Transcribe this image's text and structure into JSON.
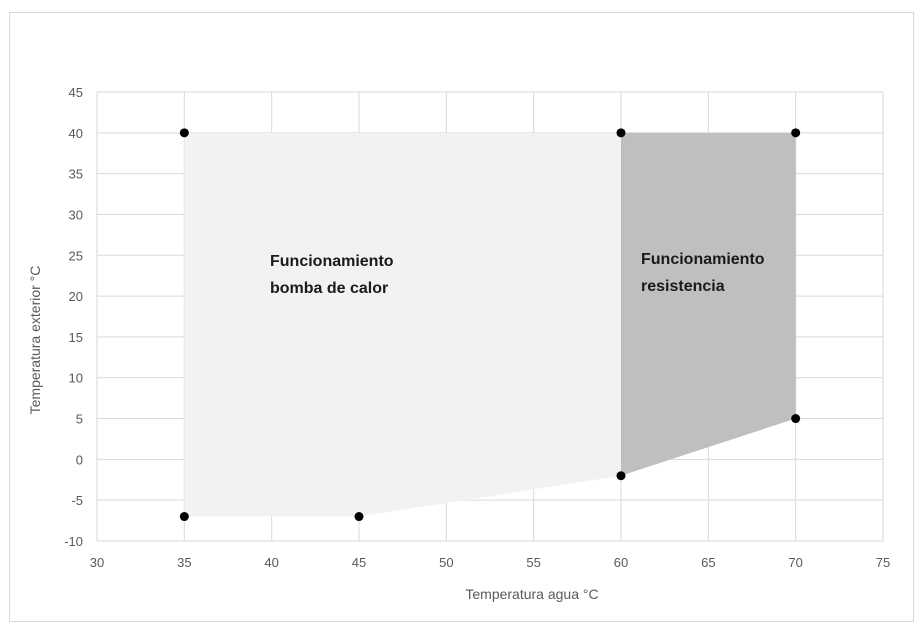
{
  "chart_data": {
    "type": "area",
    "xlabel": "Temperatura agua °C",
    "ylabel": "Temperatura exterior °C",
    "xlim": [
      30,
      75
    ],
    "ylim": [
      -10,
      45
    ],
    "x_ticks": [
      30,
      35,
      40,
      45,
      50,
      55,
      60,
      65,
      70,
      75
    ],
    "y_ticks": [
      -10,
      -5,
      0,
      5,
      10,
      15,
      20,
      25,
      30,
      35,
      40,
      45
    ],
    "grid": true,
    "regions": [
      {
        "label_lines": [
          "Funcionamiento",
          "bomba de calor"
        ],
        "color": "#f2f2f2",
        "polygon": [
          [
            35,
            40
          ],
          [
            60,
            40
          ],
          [
            60,
            -2
          ],
          [
            45,
            -7
          ],
          [
            35,
            -7
          ]
        ]
      },
      {
        "label_lines": [
          "Funcionamiento",
          "resistencia"
        ],
        "color": "#bfbfbf",
        "polygon": [
          [
            60,
            40
          ],
          [
            70,
            40
          ],
          [
            70,
            5
          ],
          [
            60,
            -2
          ]
        ]
      }
    ],
    "points": [
      {
        "x": 35,
        "y": 40
      },
      {
        "x": 60,
        "y": 40
      },
      {
        "x": 70,
        "y": 40
      },
      {
        "x": 70,
        "y": 5
      },
      {
        "x": 60,
        "y": -2
      },
      {
        "x": 45,
        "y": -7
      },
      {
        "x": 35,
        "y": -7
      }
    ],
    "colors": {
      "grid": "#d9d9d9",
      "point": "#000000",
      "text": "#595959"
    }
  }
}
